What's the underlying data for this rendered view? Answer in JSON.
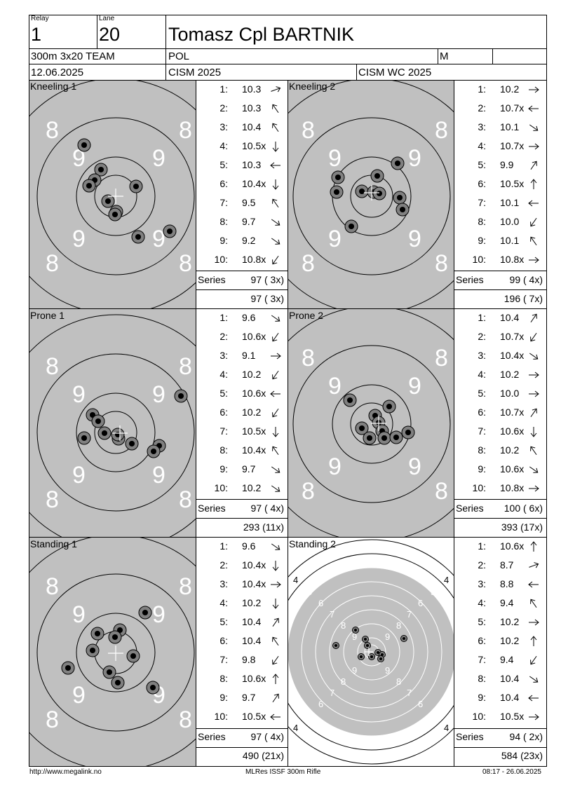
{
  "header": {
    "relay_label": "Relay",
    "relay": "1",
    "lane_label": "Lane",
    "lane": "20",
    "name": "Tomasz Cpl BARTNIK",
    "event": "300m 3x20 TEAM",
    "nation": "POL",
    "gender": "M",
    "date": "12.06.2025",
    "competition": "CISM 2025",
    "competition_group": "CISM WC 2025"
  },
  "series_label": "Series",
  "panels": [
    {
      "title": "Kneeling 1",
      "shots": [
        {
          "n": "1:",
          "v": "10.3",
          "dir": "right-up"
        },
        {
          "n": "2:",
          "v": "10.3",
          "dir": "up-left"
        },
        {
          "n": "3:",
          "v": "10.4",
          "dir": "up-left"
        },
        {
          "n": "4:",
          "v": "10.5x",
          "dir": "down"
        },
        {
          "n": "5:",
          "v": "10.3",
          "dir": "left"
        },
        {
          "n": "6:",
          "v": "10.4x",
          "dir": "down"
        },
        {
          "n": "7:",
          "v": "9.5",
          "dir": "up-left"
        },
        {
          "n": "8:",
          "v": "9.7",
          "dir": "down-right"
        },
        {
          "n": "9:",
          "v": "9.2",
          "dir": "down-right"
        },
        {
          "n": "10:",
          "v": "10.8x",
          "dir": "down-left"
        }
      ],
      "series": "97 ( 3x)",
      "total": "97 ( 3x)"
    },
    {
      "title": "Kneeling 2",
      "shots": [
        {
          "n": "1:",
          "v": "10.2",
          "dir": "right"
        },
        {
          "n": "2:",
          "v": "10.7x",
          "dir": "left"
        },
        {
          "n": "3:",
          "v": "10.1",
          "dir": "down-right"
        },
        {
          "n": "4:",
          "v": "10.7x",
          "dir": "right"
        },
        {
          "n": "5:",
          "v": "9.9",
          "dir": "up-right"
        },
        {
          "n": "6:",
          "v": "10.5x",
          "dir": "up"
        },
        {
          "n": "7:",
          "v": "10.1",
          "dir": "left"
        },
        {
          "n": "8:",
          "v": "10.0",
          "dir": "down-left"
        },
        {
          "n": "9:",
          "v": "10.1",
          "dir": "up-left"
        },
        {
          "n": "10:",
          "v": "10.8x",
          "dir": "right"
        }
      ],
      "series": "99 ( 4x)",
      "total": "196 ( 7x)"
    },
    {
      "title": "Prone 1",
      "shots": [
        {
          "n": "1:",
          "v": "9.6",
          "dir": "down-right"
        },
        {
          "n": "2:",
          "v": "10.6x",
          "dir": "down-left"
        },
        {
          "n": "3:",
          "v": "9.1",
          "dir": "right"
        },
        {
          "n": "4:",
          "v": "10.2",
          "dir": "down-left"
        },
        {
          "n": "5:",
          "v": "10.6x",
          "dir": "left"
        },
        {
          "n": "6:",
          "v": "10.2",
          "dir": "down-left"
        },
        {
          "n": "7:",
          "v": "10.5x",
          "dir": "down"
        },
        {
          "n": "8:",
          "v": "10.4x",
          "dir": "up-left"
        },
        {
          "n": "9:",
          "v": "9.7",
          "dir": "down-right"
        },
        {
          "n": "10:",
          "v": "10.2",
          "dir": "down-right"
        }
      ],
      "series": "97 ( 4x)",
      "total": "293 (11x)"
    },
    {
      "title": "Prone 2",
      "shots": [
        {
          "n": "1:",
          "v": "10.4",
          "dir": "up-right"
        },
        {
          "n": "2:",
          "v": "10.7x",
          "dir": "down-left"
        },
        {
          "n": "3:",
          "v": "10.4x",
          "dir": "down-right"
        },
        {
          "n": "4:",
          "v": "10.2",
          "dir": "right"
        },
        {
          "n": "5:",
          "v": "10.0",
          "dir": "right"
        },
        {
          "n": "6:",
          "v": "10.7x",
          "dir": "up-right"
        },
        {
          "n": "7:",
          "v": "10.6x",
          "dir": "down"
        },
        {
          "n": "8:",
          "v": "10.2",
          "dir": "up-left"
        },
        {
          "n": "9:",
          "v": "10.6x",
          "dir": "down-right"
        },
        {
          "n": "10:",
          "v": "10.8x",
          "dir": "right"
        }
      ],
      "series": "100 ( 6x)",
      "total": "393 (17x)"
    },
    {
      "title": "Standing 1",
      "shots": [
        {
          "n": "1:",
          "v": "9.6",
          "dir": "down-right"
        },
        {
          "n": "2:",
          "v": "10.4x",
          "dir": "down"
        },
        {
          "n": "3:",
          "v": "10.4x",
          "dir": "right"
        },
        {
          "n": "4:",
          "v": "10.2",
          "dir": "down"
        },
        {
          "n": "5:",
          "v": "10.4",
          "dir": "up-right"
        },
        {
          "n": "6:",
          "v": "10.4",
          "dir": "up-left"
        },
        {
          "n": "7:",
          "v": "9.8",
          "dir": "down-left"
        },
        {
          "n": "8:",
          "v": "10.6x",
          "dir": "up"
        },
        {
          "n": "9:",
          "v": "9.7",
          "dir": "up-right"
        },
        {
          "n": "10:",
          "v": "10.5x",
          "dir": "left"
        }
      ],
      "series": "97 ( 4x)",
      "total": "490 (21x)"
    },
    {
      "title": "Standing 2",
      "shots": [
        {
          "n": "1:",
          "v": "10.6x",
          "dir": "up"
        },
        {
          "n": "2:",
          "v": "8.7",
          "dir": "right-up"
        },
        {
          "n": "3:",
          "v": "8.8",
          "dir": "left"
        },
        {
          "n": "4:",
          "v": "9.4",
          "dir": "up-left"
        },
        {
          "n": "5:",
          "v": "10.2",
          "dir": "right"
        },
        {
          "n": "6:",
          "v": "10.2",
          "dir": "up"
        },
        {
          "n": "7:",
          "v": "9.4",
          "dir": "down-left"
        },
        {
          "n": "8:",
          "v": "10.4",
          "dir": "down-right"
        },
        {
          "n": "9:",
          "v": "10.4",
          "dir": "left"
        },
        {
          "n": "10:",
          "v": "10.5x",
          "dir": "right"
        }
      ],
      "series": "94 ( 2x)",
      "total": "584 (23x)"
    }
  ],
  "footer": {
    "url": "http://www.megalink.no",
    "system": "MLRes ISSF 300m Rifle",
    "timestamp": "08:17 - 26.06.2025"
  }
}
